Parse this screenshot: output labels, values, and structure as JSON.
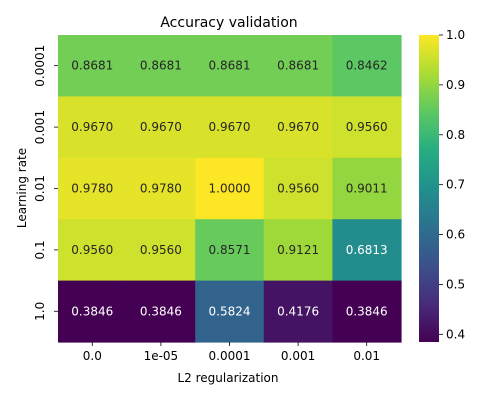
{
  "chart_data": {
    "type": "heatmap",
    "title": "Accuracy validation",
    "xlabel": "L2 regularization",
    "ylabel": "Learning rate",
    "x_categories": [
      "0.0",
      "1e-05",
      "0.0001",
      "0.001",
      "0.01"
    ],
    "y_categories": [
      "0.0001",
      "0.001",
      "0.01",
      "0.1",
      "1.0"
    ],
    "values": [
      [
        0.8681,
        0.8681,
        0.8681,
        0.8681,
        0.8462
      ],
      [
        0.967,
        0.967,
        0.967,
        0.967,
        0.956
      ],
      [
        0.978,
        0.978,
        1.0,
        0.956,
        0.9011
      ],
      [
        0.956,
        0.956,
        0.8571,
        0.9121,
        0.6813
      ],
      [
        0.3846,
        0.3846,
        0.5824,
        0.4176,
        0.3846
      ]
    ],
    "cell_labels": [
      [
        "0.8681",
        "0.8681",
        "0.8681",
        "0.8681",
        "0.8462"
      ],
      [
        "0.9670",
        "0.9670",
        "0.9670",
        "0.9670",
        "0.9560"
      ],
      [
        "0.9780",
        "0.9780",
        "1.0000",
        "0.9560",
        "0.9011"
      ],
      [
        "0.9560",
        "0.9560",
        "0.8571",
        "0.9121",
        "0.6813"
      ],
      [
        "0.3846",
        "0.3846",
        "0.5824",
        "0.4176",
        "0.3846"
      ]
    ],
    "colormap": "viridis",
    "color_range": [
      0.3846,
      1.0
    ],
    "colorbar_ticks": [
      "0.4",
      "0.5",
      "0.6",
      "0.7",
      "0.8",
      "0.9",
      "1.0"
    ],
    "grid": false
  }
}
